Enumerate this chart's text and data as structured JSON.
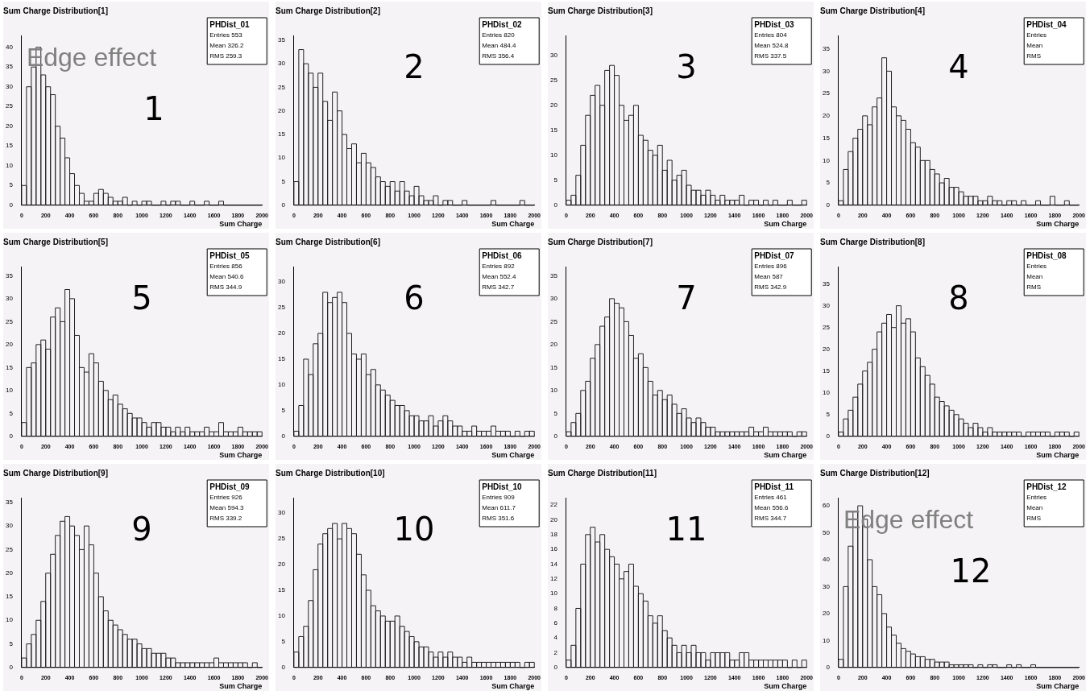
{
  "chart_data": [
    {
      "type": "histogram",
      "title": "Sum Charge Distribution[1]",
      "xlabel": "Sum Charge",
      "color": "#222222",
      "bins": [
        0,
        40,
        80,
        120,
        160,
        200,
        240,
        280,
        320,
        360,
        400,
        440,
        480,
        520,
        560,
        600,
        640,
        680,
        720,
        760,
        800,
        840,
        880,
        920,
        960,
        1000,
        1040,
        1080,
        1120,
        1160,
        1200,
        1240,
        1280,
        1320,
        1360,
        1400,
        1440,
        1480,
        1520,
        1560,
        1600,
        1640,
        1680,
        1720,
        1760,
        1800,
        1840,
        1880,
        1920,
        1960,
        2000
      ],
      "values": [
        5,
        30,
        35,
        40,
        33,
        30,
        28,
        20,
        17,
        12,
        8,
        5,
        3,
        1,
        1,
        3,
        4,
        3,
        2,
        1,
        1,
        2,
        0,
        1,
        0,
        1,
        1,
        0,
        0,
        1,
        0,
        1,
        1,
        0,
        0,
        1,
        0,
        0,
        1,
        0,
        0,
        1,
        0,
        0,
        0,
        0,
        0,
        0,
        0,
        0
      ],
      "xlim": [
        0,
        2000
      ],
      "xticks": [
        0,
        200,
        400,
        600,
        800,
        1000,
        1200,
        1400,
        1600,
        1800,
        2000
      ],
      "ylim": [
        0,
        43
      ],
      "yticks": [
        0,
        5,
        10,
        15,
        20,
        25,
        30,
        35,
        40
      ],
      "annotations": [
        "1",
        "PHDist_01",
        "Entries 553",
        "Mean 326.2",
        "RMS 259.3",
        "Edge effect"
      ]
    },
    {
      "type": "histogram",
      "title": "Sum Charge Distribution[2]",
      "xlabel": "Sum Charge",
      "color": "#222222",
      "bins": [
        0,
        40,
        80,
        120,
        160,
        200,
        240,
        280,
        320,
        360,
        400,
        440,
        480,
        520,
        560,
        600,
        640,
        680,
        720,
        760,
        800,
        840,
        880,
        920,
        960,
        1000,
        1040,
        1080,
        1120,
        1160,
        1200,
        1240,
        1280,
        1320,
        1360,
        1400,
        1440,
        1480,
        1520,
        1560,
        1600,
        1640,
        1680,
        1720,
        1760,
        1800,
        1840,
        1880,
        1920,
        1960,
        2000
      ],
      "values": [
        5,
        33,
        30,
        28,
        25,
        28,
        22,
        18,
        24,
        20,
        15,
        12,
        13,
        9,
        11,
        9,
        8,
        6,
        5,
        4,
        5,
        3,
        5,
        3,
        2,
        4,
        2,
        1,
        1,
        2,
        0,
        1,
        1,
        0,
        0,
        1,
        0,
        0,
        0,
        0,
        0,
        1,
        0,
        0,
        0,
        0,
        0,
        1,
        0,
        0
      ],
      "xlim": [
        0,
        2000
      ],
      "xticks": [
        0,
        200,
        400,
        600,
        800,
        1000,
        1200,
        1400,
        1600,
        1800,
        2000
      ],
      "ylim": [
        0,
        36
      ],
      "yticks": [
        0,
        5,
        10,
        15,
        20,
        25,
        30,
        35
      ],
      "annotations": [
        "2",
        "PHDist_02",
        "Entries 820",
        "Mean 484.4",
        "RMS 356.4"
      ]
    },
    {
      "type": "histogram",
      "title": "Sum Charge Distribution[3]",
      "xlabel": "Sum Charge",
      "color": "#222222",
      "bins": [
        0,
        40,
        80,
        120,
        160,
        200,
        240,
        280,
        320,
        360,
        400,
        440,
        480,
        520,
        560,
        600,
        640,
        680,
        720,
        760,
        800,
        840,
        880,
        920,
        960,
        1000,
        1040,
        1080,
        1120,
        1160,
        1200,
        1240,
        1280,
        1320,
        1360,
        1400,
        1440,
        1480,
        1520,
        1560,
        1600,
        1640,
        1680,
        1720,
        1760,
        1800,
        1840,
        1880,
        1920,
        1960,
        2000
      ],
      "values": [
        1,
        2,
        6,
        12,
        18,
        22,
        24,
        20,
        27,
        28,
        26,
        20,
        17,
        18,
        20,
        14,
        13,
        11,
        10,
        12,
        7,
        9,
        5,
        6,
        7,
        4,
        3,
        3,
        2,
        3,
        2,
        1,
        2,
        1,
        1,
        1,
        2,
        0,
        1,
        1,
        0,
        1,
        0,
        1,
        0,
        0,
        1,
        0,
        0,
        1
      ],
      "xlim": [
        0,
        2000
      ],
      "xticks": [
        0,
        200,
        400,
        600,
        800,
        1000,
        1200,
        1400,
        1600,
        1800,
        2000
      ],
      "ylim": [
        0,
        34
      ],
      "yticks": [
        0,
        5,
        10,
        15,
        20,
        25,
        30
      ],
      "annotations": [
        "3",
        "PHDist_03",
        "Entries 804",
        "Mean 524.8",
        "RMS 337.5"
      ]
    },
    {
      "type": "histogram",
      "title": "Sum Charge Distribution[4]",
      "xlabel": "Sum Charge",
      "color": "#222222",
      "bins": [
        0,
        40,
        80,
        120,
        160,
        200,
        240,
        280,
        320,
        360,
        400,
        440,
        480,
        520,
        560,
        600,
        640,
        680,
        720,
        760,
        800,
        840,
        880,
        920,
        960,
        1000,
        1040,
        1080,
        1120,
        1160,
        1200,
        1240,
        1280,
        1320,
        1360,
        1400,
        1440,
        1480,
        1520,
        1560,
        1600,
        1640,
        1680,
        1720,
        1760,
        1800,
        1840,
        1880,
        1920,
        1960,
        2000
      ],
      "values": [
        1,
        8,
        12,
        15,
        17,
        20,
        18,
        22,
        24,
        33,
        30,
        22,
        20,
        19,
        17,
        14,
        13,
        10,
        10,
        8,
        7,
        5,
        6,
        4,
        4,
        3,
        2,
        2,
        2,
        1,
        1,
        2,
        1,
        1,
        0,
        1,
        1,
        0,
        1,
        0,
        0,
        1,
        0,
        0,
        2,
        0,
        0,
        1,
        0,
        0
      ],
      "xlim": [
        0,
        2000
      ],
      "xticks": [
        0,
        200,
        400,
        600,
        800,
        1000,
        1200,
        1400,
        1600,
        1800,
        2000
      ],
      "ylim": [
        0,
        38
      ],
      "yticks": [
        0,
        5,
        10,
        15,
        20,
        25,
        30,
        35
      ],
      "annotations": [
        "4",
        "PHDist_04",
        "Entries",
        "Mean",
        "RMS"
      ]
    },
    {
      "type": "histogram",
      "title": "Sum Charge Distribution[5]",
      "xlabel": "Sum Charge",
      "color": "#222222",
      "bins": [
        0,
        40,
        80,
        120,
        160,
        200,
        240,
        280,
        320,
        360,
        400,
        440,
        480,
        520,
        560,
        600,
        640,
        680,
        720,
        760,
        800,
        840,
        880,
        920,
        960,
        1000,
        1040,
        1080,
        1120,
        1160,
        1200,
        1240,
        1280,
        1320,
        1360,
        1400,
        1440,
        1480,
        1520,
        1560,
        1600,
        1640,
        1680,
        1720,
        1760,
        1800,
        1840,
        1880,
        1920,
        1960,
        2000
      ],
      "values": [
        3,
        15,
        16,
        20,
        21,
        19,
        26,
        28,
        25,
        32,
        30,
        22,
        15,
        14,
        18,
        16,
        12,
        10,
        8,
        9,
        7,
        6,
        5,
        4,
        4,
        3,
        2,
        3,
        3,
        2,
        2,
        1,
        2,
        1,
        2,
        1,
        1,
        1,
        2,
        1,
        1,
        3,
        1,
        1,
        1,
        2,
        1,
        1,
        1,
        1
      ],
      "xlim": [
        0,
        2000
      ],
      "xticks": [
        0,
        200,
        400,
        600,
        800,
        1000,
        1200,
        1400,
        1600,
        1800,
        2000
      ],
      "ylim": [
        0,
        37
      ],
      "yticks": [
        0,
        5,
        10,
        15,
        20,
        25,
        30,
        35
      ],
      "annotations": [
        "5",
        "PHDist_05",
        "Entries 856",
        "Mean 540.6",
        "RMS 344.9"
      ]
    },
    {
      "type": "histogram",
      "title": "Sum Charge Distribution[6]",
      "xlabel": "Sum Charge",
      "color": "#222222",
      "bins": [
        0,
        40,
        80,
        120,
        160,
        200,
        240,
        280,
        320,
        360,
        400,
        440,
        480,
        520,
        560,
        600,
        640,
        680,
        720,
        760,
        800,
        840,
        880,
        920,
        960,
        1000,
        1040,
        1080,
        1120,
        1160,
        1200,
        1240,
        1280,
        1320,
        1360,
        1400,
        1440,
        1480,
        1520,
        1560,
        1600,
        1640,
        1680,
        1720,
        1760,
        1800,
        1840,
        1880,
        1920,
        1960,
        2000
      ],
      "values": [
        1,
        6,
        15,
        12,
        18,
        20,
        28,
        26,
        27,
        28,
        26,
        20,
        16,
        15,
        16,
        12,
        13,
        10,
        9,
        8,
        7,
        6,
        6,
        5,
        4,
        4,
        3,
        3,
        4,
        2,
        3,
        4,
        3,
        2,
        2,
        1,
        1,
        2,
        1,
        1,
        1,
        2,
        1,
        1,
        1,
        0,
        1,
        0,
        1,
        1
      ],
      "xlim": [
        0,
        2000
      ],
      "xticks": [
        0,
        200,
        400,
        600,
        800,
        1000,
        1200,
        1400,
        1600,
        1800,
        2000
      ],
      "ylim": [
        0,
        33
      ],
      "yticks": [
        0,
        5,
        10,
        15,
        20,
        25,
        30
      ],
      "annotations": [
        "6",
        "PHDist_06",
        "Entries 892",
        "Mean 552.4",
        "RMS 342.7"
      ]
    },
    {
      "type": "histogram",
      "title": "Sum Charge Distribution[7]",
      "xlabel": "Sum Charge",
      "color": "#222222",
      "bins": [
        0,
        40,
        80,
        120,
        160,
        200,
        240,
        280,
        320,
        360,
        400,
        440,
        480,
        520,
        560,
        600,
        640,
        680,
        720,
        760,
        800,
        840,
        880,
        920,
        960,
        1000,
        1040,
        1080,
        1120,
        1160,
        1200,
        1240,
        1280,
        1320,
        1360,
        1400,
        1440,
        1480,
        1520,
        1560,
        1600,
        1640,
        1680,
        1720,
        1760,
        1800,
        1840,
        1880,
        1920,
        1960,
        2000
      ],
      "values": [
        1,
        3,
        5,
        10,
        12,
        17,
        20,
        24,
        26,
        30,
        29,
        28,
        25,
        22,
        17,
        18,
        15,
        12,
        9,
        10,
        8,
        9,
        7,
        5,
        6,
        4,
        3,
        4,
        3,
        2,
        2,
        1,
        1,
        1,
        1,
        1,
        1,
        1,
        2,
        1,
        1,
        2,
        1,
        1,
        1,
        1,
        1,
        0,
        1,
        1
      ],
      "xlim": [
        0,
        2000
      ],
      "xticks": [
        0,
        200,
        400,
        600,
        800,
        1000,
        1200,
        1400,
        1600,
        1800,
        2000
      ],
      "ylim": [
        0,
        37
      ],
      "yticks": [
        0,
        5,
        10,
        15,
        20,
        25,
        30,
        35
      ],
      "annotations": [
        "7",
        "PHDist_07",
        "Entries 896",
        "Mean 587",
        "RMS 342.9"
      ]
    },
    {
      "type": "histogram",
      "title": "Sum Charge Distribution[8]",
      "xlabel": "Sum Charge",
      "color": "#222222",
      "bins": [
        0,
        40,
        80,
        120,
        160,
        200,
        240,
        280,
        320,
        360,
        400,
        440,
        480,
        520,
        560,
        600,
        640,
        680,
        720,
        760,
        800,
        840,
        880,
        920,
        960,
        1000,
        1040,
        1080,
        1120,
        1160,
        1200,
        1240,
        1280,
        1320,
        1360,
        1400,
        1440,
        1480,
        1520,
        1560,
        1600,
        1640,
        1680,
        1720,
        1760,
        1800,
        1840,
        1880,
        1920,
        1960,
        2000
      ],
      "values": [
        1,
        4,
        6,
        9,
        12,
        15,
        17,
        20,
        24,
        26,
        28,
        25,
        30,
        26,
        27,
        24,
        18,
        16,
        14,
        12,
        9,
        8,
        7,
        6,
        5,
        4,
        3,
        2,
        3,
        2,
        1,
        2,
        1,
        1,
        1,
        1,
        1,
        1,
        0,
        1,
        1,
        1,
        1,
        1,
        0,
        1,
        1,
        1,
        0,
        1
      ],
      "xlim": [
        0,
        2000
      ],
      "xticks": [
        0,
        200,
        400,
        600,
        800,
        1000,
        1200,
        1400,
        1600,
        1800,
        2000
      ],
      "ylim": [
        0,
        39
      ],
      "yticks": [
        0,
        5,
        10,
        15,
        20,
        25,
        30,
        35
      ],
      "annotations": [
        "8",
        "PHDist_08",
        "Entries",
        "Mean",
        "RMS"
      ]
    },
    {
      "type": "histogram",
      "title": "Sum Charge Distribution[9]",
      "xlabel": "Sum Charge",
      "color": "#222222",
      "bins": [
        0,
        40,
        80,
        120,
        160,
        200,
        240,
        280,
        320,
        360,
        400,
        440,
        480,
        520,
        560,
        600,
        640,
        680,
        720,
        760,
        800,
        840,
        880,
        920,
        960,
        1000,
        1040,
        1080,
        1120,
        1160,
        1200,
        1240,
        1280,
        1320,
        1360,
        1400,
        1440,
        1480,
        1520,
        1560,
        1600,
        1640,
        1680,
        1720,
        1760,
        1800,
        1840,
        1880,
        1920,
        1960,
        2000
      ],
      "values": [
        2,
        5,
        7,
        10,
        14,
        20,
        24,
        28,
        31,
        32,
        30,
        28,
        25,
        30,
        26,
        20,
        15,
        12,
        10,
        9,
        8,
        7,
        6,
        6,
        5,
        4,
        4,
        3,
        3,
        3,
        2,
        2,
        1,
        1,
        1,
        1,
        1,
        1,
        1,
        1,
        2,
        1,
        1,
        1,
        1,
        1,
        1,
        0,
        1,
        0
      ],
      "xlim": [
        0,
        2000
      ],
      "xticks": [
        0,
        200,
        400,
        600,
        800,
        1000,
        1200,
        1400,
        1600,
        1800,
        2000
      ],
      "ylim": [
        0,
        36
      ],
      "yticks": [
        0,
        5,
        10,
        15,
        20,
        25,
        30,
        35
      ],
      "annotations": [
        "9",
        "PHDist_09",
        "Entries 926",
        "Mean 594.3",
        "RMS 339.2"
      ]
    },
    {
      "type": "histogram",
      "title": "Sum Charge Distribution[10]",
      "xlabel": "Sum Charge",
      "color": "#222222",
      "bins": [
        0,
        40,
        80,
        120,
        160,
        200,
        240,
        280,
        320,
        360,
        400,
        440,
        480,
        520,
        560,
        600,
        640,
        680,
        720,
        760,
        800,
        840,
        880,
        920,
        960,
        1000,
        1040,
        1080,
        1120,
        1160,
        1200,
        1240,
        1280,
        1320,
        1360,
        1400,
        1440,
        1480,
        1520,
        1560,
        1600,
        1640,
        1680,
        1720,
        1760,
        1800,
        1840,
        1880,
        1920,
        1960,
        2000
      ],
      "values": [
        3,
        6,
        8,
        13,
        19,
        24,
        26,
        27,
        28,
        25,
        28,
        27,
        26,
        22,
        18,
        15,
        12,
        11,
        10,
        9,
        9,
        10,
        8,
        7,
        6,
        5,
        4,
        4,
        3,
        2,
        3,
        2,
        3,
        2,
        2,
        1,
        2,
        1,
        1,
        1,
        1,
        1,
        1,
        1,
        1,
        1,
        1,
        0,
        1,
        1
      ],
      "xlim": [
        0,
        2000
      ],
      "xticks": [
        0,
        200,
        400,
        600,
        800,
        1000,
        1200,
        1400,
        1600,
        1800,
        2000
      ],
      "ylim": [
        0,
        33
      ],
      "yticks": [
        0,
        5,
        10,
        15,
        20,
        25,
        30
      ],
      "annotations": [
        "10",
        "PHDist_10",
        "Entries 909",
        "Mean 611.7",
        "RMS 351.6"
      ]
    },
    {
      "type": "histogram",
      "title": "Sum Charge Distribution[11]",
      "xlabel": "Sum Charge",
      "color": "#222222",
      "bins": [
        0,
        40,
        80,
        120,
        160,
        200,
        240,
        280,
        320,
        360,
        400,
        440,
        480,
        520,
        560,
        600,
        640,
        680,
        720,
        760,
        800,
        840,
        880,
        920,
        960,
        1000,
        1040,
        1080,
        1120,
        1160,
        1200,
        1240,
        1280,
        1320,
        1360,
        1400,
        1440,
        1480,
        1520,
        1560,
        1600,
        1640,
        1680,
        1720,
        1760,
        1800,
        1840,
        1880,
        1920,
        1960,
        2000
      ],
      "values": [
        1,
        3,
        8,
        14,
        18,
        19,
        17,
        18,
        16,
        15,
        14,
        12,
        13,
        14,
        11,
        10,
        9,
        7,
        6,
        7,
        5,
        4,
        3,
        2,
        3,
        2,
        3,
        2,
        2,
        1,
        2,
        2,
        2,
        2,
        1,
        1,
        2,
        2,
        1,
        1,
        1,
        1,
        1,
        1,
        1,
        1,
        0,
        1,
        0,
        1
      ],
      "xlim": [
        0,
        2000
      ],
      "xticks": [
        0,
        200,
        400,
        600,
        800,
        1000,
        1200,
        1400,
        1600,
        1800,
        2000
      ],
      "ylim": [
        0,
        23
      ],
      "yticks": [
        0,
        2,
        4,
        6,
        8,
        10,
        12,
        14,
        16,
        18,
        20,
        22
      ],
      "annotations": [
        "11",
        "PHDist_11",
        "Entries 461",
        "Mean 556.6",
        "RMS 344.7"
      ]
    },
    {
      "type": "histogram",
      "title": "Sum Charge Distribution[12]",
      "xlabel": "Sum Charge",
      "color": "#222222",
      "bins": [
        0,
        40,
        80,
        120,
        160,
        200,
        240,
        280,
        320,
        360,
        400,
        440,
        480,
        520,
        560,
        600,
        640,
        680,
        720,
        760,
        800,
        840,
        880,
        920,
        960,
        1000,
        1040,
        1080,
        1120,
        1160,
        1200,
        1240,
        1280,
        1320,
        1360,
        1400,
        1440,
        1480,
        1520,
        1560,
        1600,
        1640,
        1680,
        1720,
        1760,
        1800,
        1840,
        1880,
        1920,
        1960,
        2000
      ],
      "values": [
        3,
        30,
        45,
        58,
        60,
        55,
        40,
        30,
        27,
        20,
        15,
        12,
        9,
        7,
        6,
        5,
        4,
        4,
        3,
        3,
        2,
        2,
        2,
        1,
        1,
        1,
        1,
        1,
        0,
        1,
        0,
        1,
        1,
        0,
        0,
        1,
        0,
        1,
        0,
        0,
        1,
        0,
        0,
        0,
        0,
        0,
        0,
        0,
        0,
        0
      ],
      "xlim": [
        0,
        2000
      ],
      "xticks": [
        0,
        200,
        400,
        600,
        800,
        1000,
        1200,
        1400,
        1600,
        1800,
        2000
      ],
      "ylim": [
        0,
        63
      ],
      "yticks": [
        0,
        10,
        20,
        30,
        40,
        50,
        60
      ],
      "annotations": [
        "12",
        "PHDist_12",
        "Entries",
        "Mean",
        "RMS",
        "Edge effect"
      ]
    }
  ]
}
